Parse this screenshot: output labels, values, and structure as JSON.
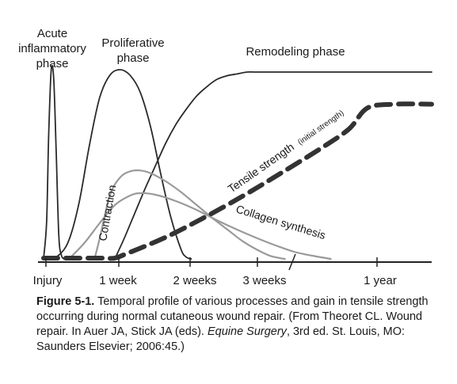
{
  "chart_data": {
    "type": "line",
    "x_axis": {
      "tick_labels": [
        "Injury",
        "1 week",
        "2 weeks",
        "3 weeks",
        "1 year"
      ],
      "broken_axis": true
    },
    "y_axis": {
      "shown": false
    },
    "grid": false,
    "legend": "none",
    "phase_labels": {
      "acute": [
        "Acute",
        "inflammatory",
        "phase"
      ],
      "proliferative": [
        "Proliferative",
        "phase"
      ],
      "remodeling": "Remodeling phase"
    },
    "curve_labels": {
      "tensile": "Tensile strength",
      "tensile_note": "(initial strength)",
      "contraction": "Contraction",
      "collagen": "Collagen synthesis"
    },
    "series": [
      {
        "key": "acute_inflammatory",
        "style": "dark",
        "x": [
          0,
          0.3,
          0.5,
          0.75,
          1,
          1.25,
          1.5,
          1.75,
          2
        ],
        "y": [
          0,
          0.2,
          0.65,
          1.0,
          0.95,
          0.55,
          0.12,
          0.02,
          0
        ]
      },
      {
        "key": "proliferative",
        "style": "dark",
        "x": [
          0.5,
          1.5,
          2.5,
          3.5,
          4.5,
          5.5,
          6.5,
          7.5,
          8.5,
          9.5,
          10.5,
          11.5,
          12.5,
          13.5,
          14,
          14.5
        ],
        "y": [
          0,
          0.02,
          0.1,
          0.3,
          0.6,
          0.85,
          0.97,
          1.0,
          0.97,
          0.88,
          0.7,
          0.45,
          0.22,
          0.05,
          0.01,
          0
        ]
      },
      {
        "key": "remodeling",
        "style": "dark",
        "x": [
          7,
          8,
          9,
          10,
          11,
          12,
          13,
          14,
          15,
          16,
          17,
          18,
          19,
          20,
          21,
          25,
          30,
          35,
          40
        ],
        "y": [
          0,
          0.12,
          0.25,
          0.38,
          0.5,
          0.62,
          0.72,
          0.8,
          0.87,
          0.92,
          0.96,
          0.98,
          0.99,
          1.0,
          1.0,
          1.0,
          1.0,
          1.0,
          1.0
        ]
      },
      {
        "key": "contraction",
        "style": "gray",
        "x": [
          5,
          5.5,
          6.5,
          7.5,
          8.5,
          9.5,
          10.5,
          12,
          13.5,
          15,
          16.5,
          18,
          19.5,
          21,
          22.5,
          24
        ],
        "y": [
          0,
          0.22,
          0.7,
          0.9,
          0.97,
          0.98,
          0.95,
          0.86,
          0.74,
          0.6,
          0.46,
          0.33,
          0.2,
          0.1,
          0.03,
          0
        ]
      },
      {
        "key": "collagen_synthesis",
        "style": "gray",
        "x": [
          2.5,
          4,
          5.5,
          7,
          8.5,
          9.5,
          11,
          13,
          15,
          17,
          19,
          21,
          23,
          25,
          27,
          29
        ],
        "y": [
          0,
          0.2,
          0.45,
          0.68,
          0.8,
          0.83,
          0.81,
          0.73,
          0.62,
          0.49,
          0.37,
          0.26,
          0.17,
          0.09,
          0.04,
          0
        ]
      },
      {
        "key": "tensile_strength",
        "style": "dashed",
        "x": [
          0,
          1,
          2,
          3,
          4,
          5,
          6,
          7,
          8,
          12,
          16,
          20,
          24,
          28,
          31,
          33,
          36,
          40
        ],
        "y": [
          0,
          0,
          0,
          0,
          0,
          0,
          0,
          0,
          0.02,
          0.11,
          0.22,
          0.34,
          0.46,
          0.58,
          0.68,
          0.79,
          0.81,
          0.81
        ]
      }
    ]
  },
  "caption": {
    "label": "Figure 5-1.",
    "text": "Temporal profile of various processes and gain in tensile strength occurring during normal cutaneous wound repair. (From Theoret CL. Wound repair. In Auer JA, Stick JA (eds). ",
    "italic": "Equine Surgery",
    "text_after": ", 3rd ed. St. Louis, MO: Saunders Elsevier; 2006:45.)"
  }
}
